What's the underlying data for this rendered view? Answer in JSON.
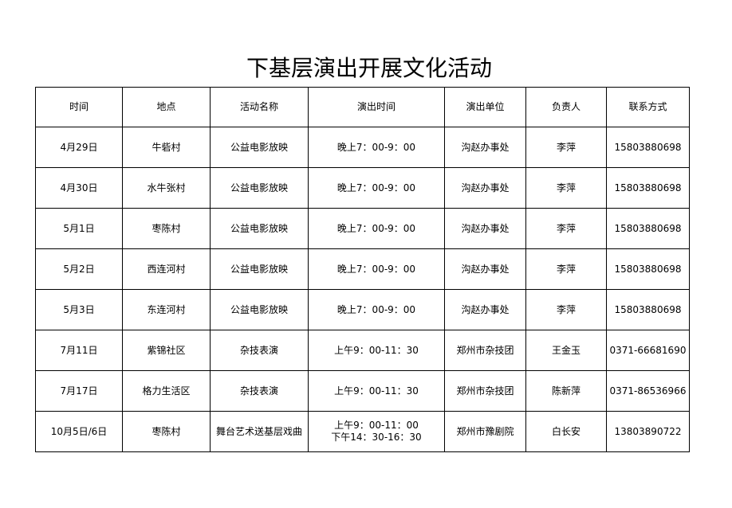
{
  "title": "下基层演出开展文化活动",
  "headers": [
    "时间",
    "地点",
    "活动名称",
    "演出时间",
    "演出单位",
    "负责人",
    "联系方式"
  ],
  "rows": [
    [
      "4月29日",
      "牛砦村",
      "公益电影放映",
      "晚上7：00-9：00",
      "沟赵办事处",
      "李萍",
      "15803880698"
    ],
    [
      "4月30日",
      "水牛张村",
      "公益电影放映",
      "晚上7：00-9：00",
      "沟赵办事处",
      "李萍",
      "15803880698"
    ],
    [
      "5月1日",
      "枣陈村",
      "公益电影放映",
      "晚上7：00-9：00",
      "沟赵办事处",
      "李萍",
      "15803880698"
    ],
    [
      "5月2日",
      "西连河村",
      "公益电影放映",
      "晚上7：00-9：00",
      "沟赵办事处",
      "李萍",
      "15803880698"
    ],
    [
      "5月3日",
      "东连河村",
      "公益电影放映",
      "晚上7：00-9：00",
      "沟赵办事处",
      "李萍",
      "15803880698"
    ],
    [
      "7月11日",
      "紫锦社区",
      "杂技表演",
      "上午9：00-11：30",
      "郑州市杂技团",
      "王金玉",
      "0371-66681690"
    ],
    [
      "7月17日",
      "格力生活区",
      "杂技表演",
      "上午9：00-11：30",
      "郑州市杂技团",
      "陈新萍",
      "0371-86536966"
    ],
    [
      "10月5日/6日",
      "枣陈村",
      "舞台艺术送基层戏曲",
      "上午9：00-11：00\n下午14：30-16：30",
      "郑州市豫剧院",
      "白长安",
      "13803890722"
    ]
  ]
}
